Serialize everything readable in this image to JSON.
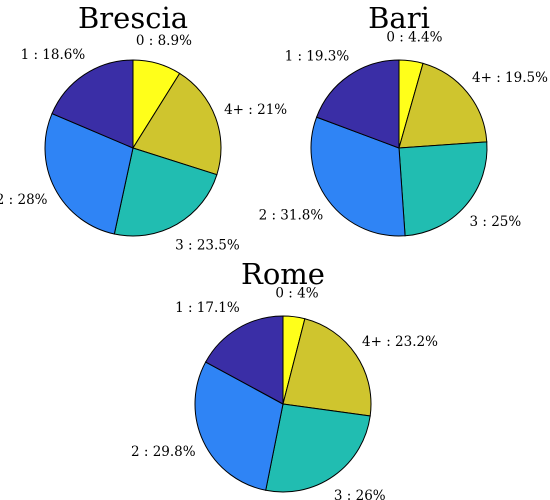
{
  "chart_data": [
    {
      "type": "pie",
      "title": "Brescia",
      "slices": [
        {
          "label": "0 : 8.9%",
          "category": "0",
          "value": 8.9,
          "color": "#ffff1a"
        },
        {
          "label": "4+ : 21%",
          "category": "4+",
          "value": 21.0,
          "color": "#cfc52e"
        },
        {
          "label": "3 : 23.5%",
          "category": "3",
          "value": 23.5,
          "color": "#21bdb1"
        },
        {
          "label": "2 : 28%",
          "category": "2",
          "value": 28.0,
          "color": "#2f84f5"
        },
        {
          "label": "1 : 18.6%",
          "category": "1",
          "value": 18.6,
          "color": "#3a2ea6"
        }
      ]
    },
    {
      "type": "pie",
      "title": "Bari",
      "slices": [
        {
          "label": "0 : 4.4%",
          "category": "0",
          "value": 4.4,
          "color": "#ffff1a"
        },
        {
          "label": "4+ : 19.5%",
          "category": "4+",
          "value": 19.5,
          "color": "#cfc52e"
        },
        {
          "label": "3 : 25%",
          "category": "3",
          "value": 25.0,
          "color": "#21bdb1"
        },
        {
          "label": "2 : 31.8%",
          "category": "2",
          "value": 31.8,
          "color": "#2f84f5"
        },
        {
          "label": "1 : 19.3%",
          "category": "1",
          "value": 19.3,
          "color": "#3a2ea6"
        }
      ]
    },
    {
      "type": "pie",
      "title": "Rome",
      "slices": [
        {
          "label": "0 : 4%",
          "category": "0",
          "value": 4.0,
          "color": "#ffff1a"
        },
        {
          "label": "4+ : 23.2%",
          "category": "4+",
          "value": 23.2,
          "color": "#cfc52e"
        },
        {
          "label": "3 : 26%",
          "category": "3",
          "value": 26.0,
          "color": "#21bdb1"
        },
        {
          "label": "2 : 29.8%",
          "category": "2",
          "value": 29.8,
          "color": "#2f84f5"
        },
        {
          "label": "1 : 17.1%",
          "category": "1",
          "value": 17.1,
          "color": "#3a2ea6"
        }
      ]
    }
  ]
}
